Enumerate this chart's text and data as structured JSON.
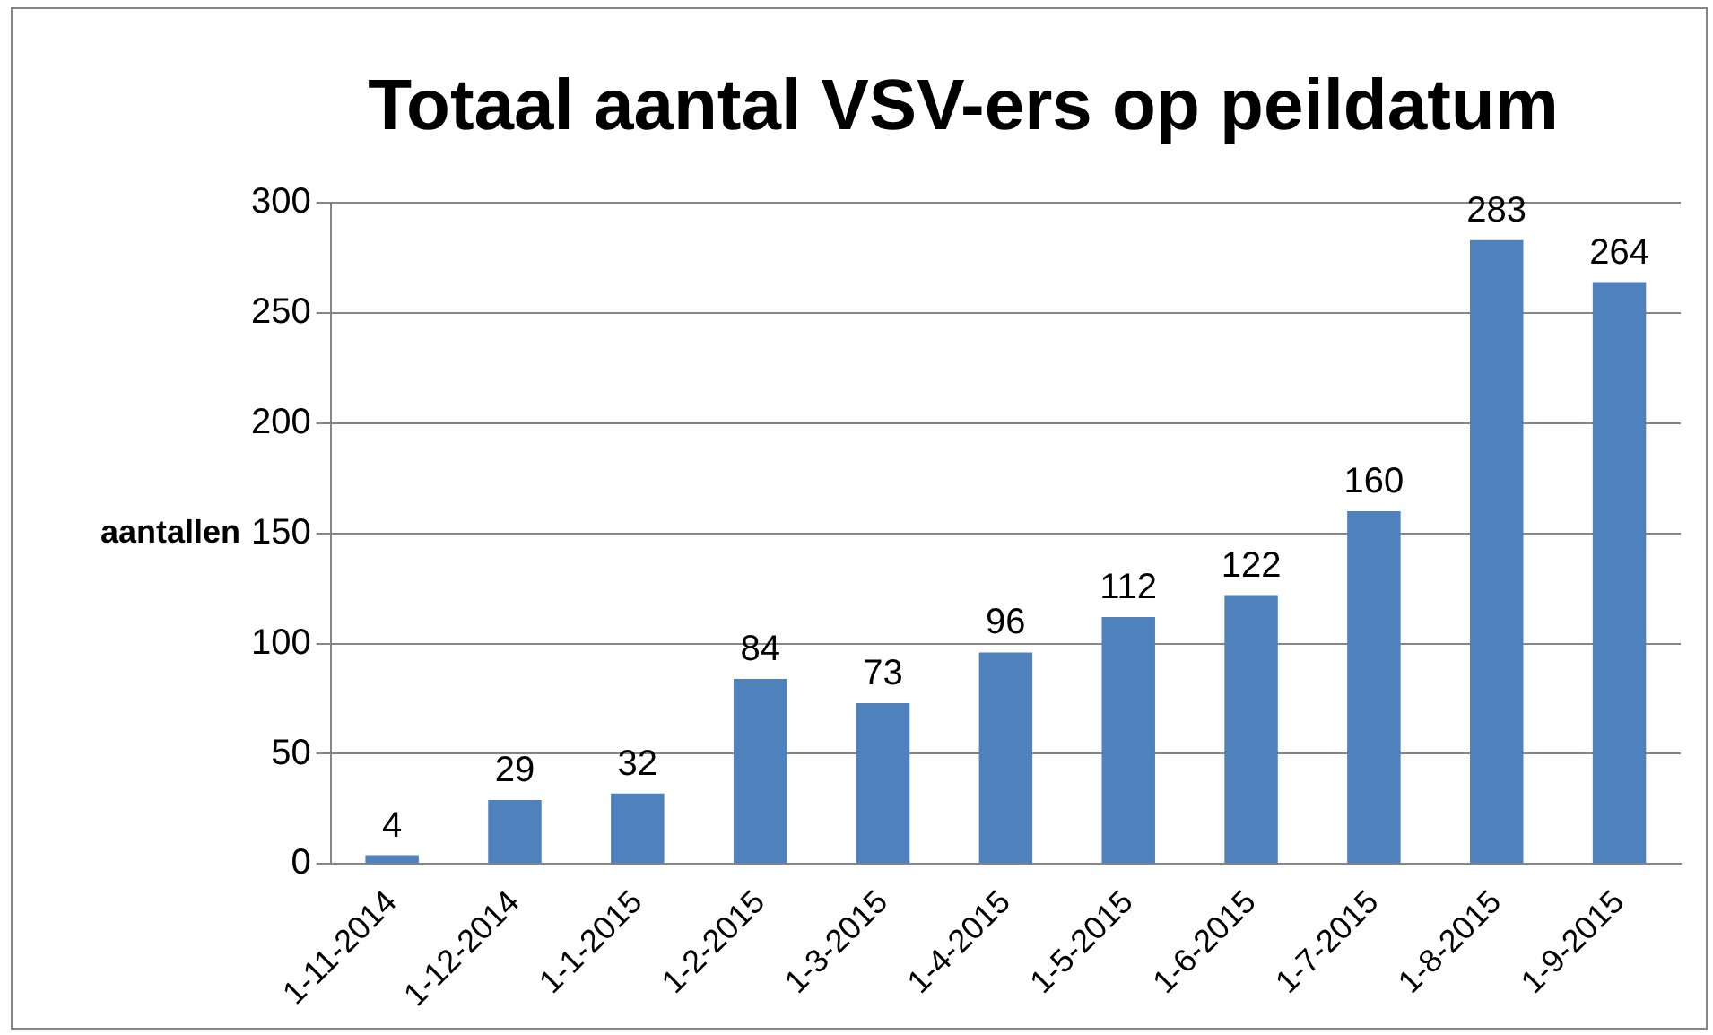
{
  "chart_data": {
    "type": "bar",
    "title": "Totaal aantal VSV-ers op peildatum",
    "ylabel": "aantallen",
    "categories": [
      "1-11-2014",
      "1-12-2014",
      "1-1-2015",
      "1-2-2015",
      "1-3-2015",
      "1-4-2015",
      "1-5-2015",
      "1-6-2015",
      "1-7-2015",
      "1-8-2015",
      "1-9-2015"
    ],
    "values": [
      4,
      29,
      32,
      84,
      73,
      96,
      112,
      122,
      160,
      283,
      264
    ],
    "color": "#4f81bd",
    "ylim": [
      0,
      300
    ],
    "yticks": [
      0,
      50,
      100,
      150,
      200,
      250,
      300
    ],
    "grid": "y",
    "data_labels": true,
    "legend": false
  }
}
